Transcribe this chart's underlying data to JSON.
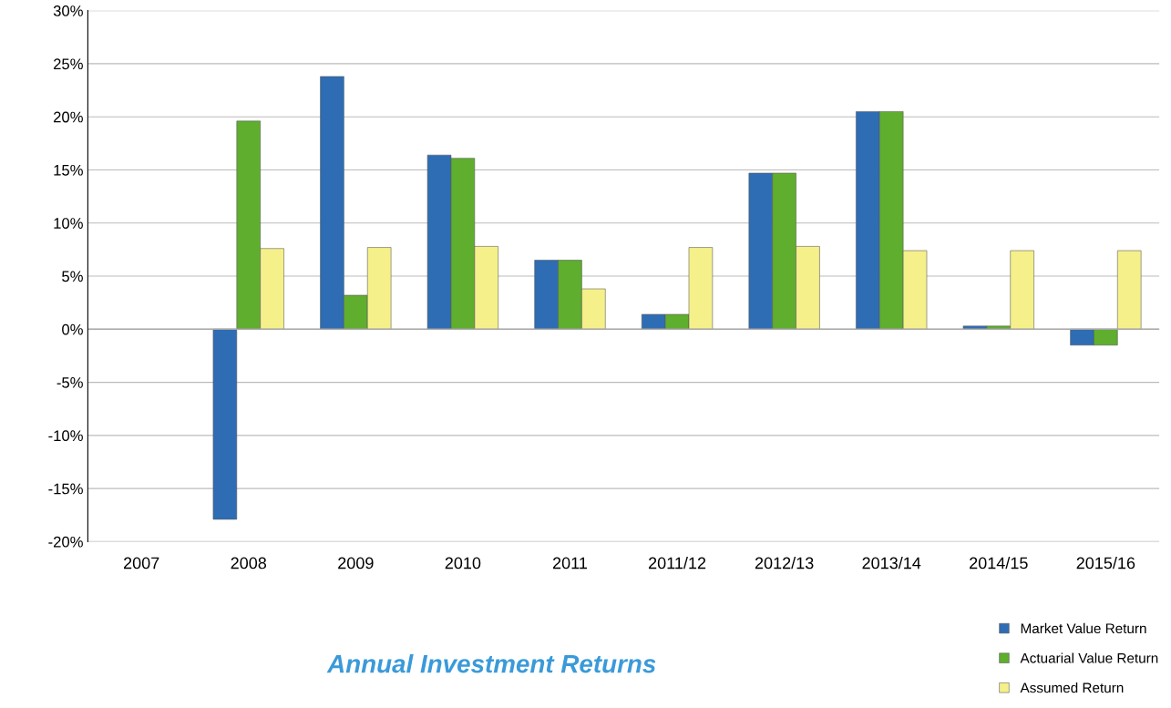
{
  "chart_data": {
    "type": "bar",
    "title": "Annual Investment Returns",
    "categories": [
      "2007",
      "2008",
      "2009",
      "2010",
      "2011",
      "2011/12",
      "2012/13",
      "2013/14",
      "2014/15",
      "2015/16"
    ],
    "series": [
      {
        "name": "Market Value Return",
        "color": "#2e6db4",
        "values": [
          null,
          -17.9,
          23.8,
          16.4,
          6.5,
          1.4,
          14.7,
          20.5,
          0.3,
          -1.5
        ]
      },
      {
        "name": "Actuarial Value Return",
        "color": "#5fae2e",
        "values": [
          null,
          19.6,
          3.2,
          16.1,
          6.5,
          1.4,
          14.7,
          20.5,
          0.3,
          -1.5
        ]
      },
      {
        "name": "Assumed Return",
        "color": "#f5f08a",
        "values": [
          null,
          7.6,
          7.7,
          7.8,
          3.8,
          7.7,
          7.8,
          7.4,
          7.4,
          7.4
        ]
      }
    ],
    "ylim": [
      -20,
      30
    ],
    "yticks": [
      {
        "value": -20,
        "label": "-20%"
      },
      {
        "value": -15,
        "label": "-15%"
      },
      {
        "value": -10,
        "label": "-10%"
      },
      {
        "value": -5,
        "label": "-5%"
      },
      {
        "value": 0,
        "label": "0%"
      },
      {
        "value": 5,
        "label": "5%"
      },
      {
        "value": 10,
        "label": "10%"
      },
      {
        "value": 15,
        "label": "15%"
      },
      {
        "value": 20,
        "label": "20%"
      },
      {
        "value": 25,
        "label": "25%"
      },
      {
        "value": 30,
        "label": "30%"
      }
    ],
    "grid": "y",
    "legend": "bottom right"
  }
}
